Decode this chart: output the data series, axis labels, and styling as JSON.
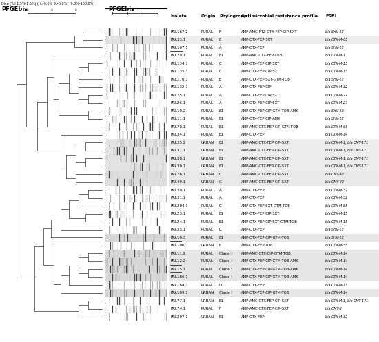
{
  "title_left": "PFGEbis",
  "title_right": "PFGEbis",
  "subtitle": "Dice (Tol 1.5%-1.5%) (H>0.0% S>0.0%) [0.0%-100.0%]",
  "isolates": [
    "PRL167.2",
    "PRL33.1",
    "PRL167.1",
    "PRL20.1",
    "PRL134.1",
    "PRL135.1",
    "PRL170.1",
    "PRL132.1",
    "PRL25.1",
    "PRL26.1",
    "PRL10.2",
    "PRL11.1",
    "PRL70.1",
    "PRL34.1",
    "PRL35.2",
    "PRL37.1",
    "PRL38.1",
    "PRL39.1",
    "PRL76.1",
    "PRL49.1",
    "PRL30.1",
    "PRL31.1",
    "PRL204.1",
    "PRL23.1",
    "PRL24.1",
    "PRL55.1",
    "PRL10.3",
    "PRL106.1",
    "PRL11.2",
    "PRL12.2",
    "PRL15.1",
    "PRL186.1",
    "PRL184.1",
    "PRL109.1",
    "PRL77.1",
    "PRL74.1",
    "PRL207.1"
  ],
  "underlined": [
    "PRL167.1",
    "PRL10.3",
    "PRL11.2",
    "PRL12.2",
    "PRL15.1",
    "PRL186.1",
    "PRL109.1"
  ],
  "origins": [
    "RURAL",
    "RURAL",
    "RURAL",
    "RURAL",
    "RURAL",
    "RURAL",
    "RURAL",
    "RURAL",
    "RURAL",
    "RURAL",
    "RURAL",
    "RURAL",
    "RURAL",
    "RURAL",
    "URBAN",
    "URBAN",
    "URBAN",
    "URBAN",
    "URBAN",
    "URBAN",
    "RURAL",
    "RURAL",
    "RURAL",
    "RURAL",
    "RURAL",
    "RURAL",
    "RURAL",
    "URBAN",
    "RURAL",
    "RURAL",
    "RURAL",
    "RURAL",
    "RURAL",
    "URBAN",
    "URBAN",
    "RURAL",
    "URBAN"
  ],
  "phylogroups": [
    "F",
    "E",
    "A",
    "B1",
    "C",
    "C",
    "E",
    "A",
    "A",
    "A",
    "B1",
    "B1",
    "B1",
    "B1",
    "B1",
    "B1",
    "B1",
    "B1",
    "C",
    "C",
    "A",
    "A",
    "C",
    "B1",
    "B1",
    "C",
    "B1",
    "E",
    "Clade I",
    "Clade I",
    "Clade I",
    "Clade I",
    "D",
    "Clade I",
    "B1",
    "F",
    "B1"
  ],
  "resistance_profiles": [
    "AMP-AMC-PTZ-CTX-FEP-CIP-SXT",
    "AMP-CTX-FEP-SXT",
    "AMP-CTX-FEP",
    "AMP-AMC-CTX-FEP-TOB",
    "AMP-CTX-FEP-CIP-SXT",
    "AMP-CTX-FEP-CIP-SXT",
    "AMP-CTX-FEP-SXT-GTM-TOB",
    "AMP-CTX-FEP-CIP",
    "AMP-CTX-FEP-CIP-SXT",
    "AMP-CTX-FEP-CIP-SXT",
    "AMP-CTX-FEP-CIP-GTM-TOB-AMK",
    "AMP-CTX-FEP-CIP-AMK",
    "AMP-AMC-CTX-FEP-CIP-GTM-TOB",
    "AMP-CTX-FEP",
    "AMP-AMC-CTX-FEP-CIP-SXT",
    "AMP-AMC-CTX-FEP-CIP-SXT",
    "AMP-AMC-CTX-FEP-CIP-SXT",
    "AMP-AMC-CTX-FEP-CIP-SXT",
    "AMP-AMC-CTX-FEP-CIP-SXT",
    "AMP-AMC-CTX-FEP-CIP-SXT",
    "AMP-CTX-FEP",
    "AMP-CTX-FEP",
    "AMP-CTX-FEP-SXT-GTM-TOB",
    "AMP-CTX-FEP-CIP-SXT",
    "AMP-CTX-FEP-CIP-SXT-GTM-TOB",
    "AMP-CTX-FEP",
    "AMP-CTX-FEP-CIP-GTM-TOB",
    "AMP-CTX-FEP-TOB",
    "AMP-AMC-CTX-CIP-GTM-TOB",
    "AMP-CTX-FEP-CIP-GTM-TOB-AMK",
    "AMP-CTX-FEP-CIP-GTM-TOB-AMK",
    "AMP-CTX-FEP-CIP-GTM-TOB-AMK",
    "AMP-CTX-FEP",
    "AMP-CTX-FEP-CIP-GTM-TOB",
    "AMP-AMC-CTX-FEP-CIP-SXT",
    "AMP-AMC-CTX-FEP-CIP-SXT",
    "AMP-CTX-FEP"
  ],
  "esbl": [
    "bla SHV-12",
    "bla CTX-M-65",
    "bla SHV-12",
    "bla CTX-M-1",
    "bla CTX-M-15",
    "bla CTX-M-15",
    "bla SHV-12",
    "bla CTX-M-32",
    "bla CTX-M-27",
    "bla CTX-M-27",
    "bla SHV-12",
    "bla SHV-12",
    "bla CTX-M-65",
    "bla CTX-M-14",
    "bla CTX-M-1, bla CMY-171",
    "bla CTX-M-1, bla CMY-171",
    "bla CTX-M-1, bla CMY-171",
    "bla CTX-M-1, bla CMY-171",
    "bla CMY-42",
    "bla CMY-42",
    "bla CTX-M-32",
    "bla CTX-M-32",
    "bla CTX-M-65",
    "bla CTX-M-15",
    "bla CTX-M-15",
    "bla SHV-12",
    "bla SHV-12",
    "bla CTX-M-55",
    "bla CTX-M-14",
    "bla CTX-M-14",
    "bla CTX-M-14",
    "bla CTX-M-14",
    "bla CTX-M-15",
    "bla CTX-M-14",
    "bla CTX-M-1, bla CMY-171",
    "bla CMY-2",
    "bla CTX-M-32"
  ],
  "row_bg_colors": [
    "#ffffff",
    "#d8d8d8",
    "#ffffff",
    "#ffffff",
    "#ffffff",
    "#ffffff",
    "#ffffff",
    "#ffffff",
    "#ffffff",
    "#ffffff",
    "#ffffff",
    "#ffffff",
    "#ffffff",
    "#ffffff",
    "#d8d8d8",
    "#d8d8d8",
    "#d8d8d8",
    "#d8d8d8",
    "#d0d0d0",
    "#d0d0d0",
    "#ffffff",
    "#ffffff",
    "#ffffff",
    "#ffffff",
    "#ffffff",
    "#ffffff",
    "#c8c8c8",
    "#ffffff",
    "#c8c8c8",
    "#c8c8c8",
    "#c8c8c8",
    "#c8c8c8",
    "#ffffff",
    "#c8c8c8",
    "#ffffff",
    "#ffffff",
    "#ffffff"
  ]
}
